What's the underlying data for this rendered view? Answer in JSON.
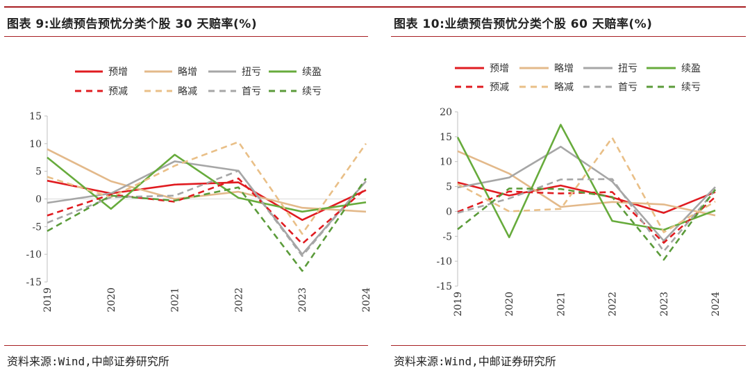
{
  "colors": {
    "accent": "#a71e22",
    "series": {
      "预增": "#e01b20",
      "略增": "#e3b98a",
      "扭亏": "#a6a6a6",
      "续盈": "#67ab3c",
      "预减": "#e01b20",
      "略减": "#e9bf87",
      "首亏": "#a6a6a6",
      "续亏": "#5b9b3a"
    }
  },
  "left": {
    "title": "图表 9:业绩预告预忧分类个股 30 天赔率(%)",
    "source": "资料来源:Wind,中邮证券研究所"
  },
  "right": {
    "title": "图表 10:业绩预告预忧分类个股 60 天赔率(%)",
    "source": "资料来源:Wind,中邮证券研究所"
  },
  "chart_data": [
    {
      "type": "line",
      "title": "图表 9:业绩预告预忧分类个股 30 天赔率(%)",
      "x": [
        "2019",
        "2020",
        "2021",
        "2022",
        "2023",
        "2024"
      ],
      "ylim": [
        -15,
        15
      ],
      "yticks": [
        -15,
        -10,
        -5,
        0,
        5,
        10,
        15
      ],
      "ylabel": "",
      "xlabel": "",
      "legend": "top",
      "series": [
        {
          "name": "预增",
          "dash": false,
          "values": [
            3.3,
            1.0,
            2.6,
            3.0,
            -3.8,
            1.6
          ]
        },
        {
          "name": "略增",
          "dash": false,
          "values": [
            9.0,
            3.2,
            0.0,
            1.3,
            -1.6,
            -2.3
          ]
        },
        {
          "name": "扭亏",
          "dash": false,
          "values": [
            -0.7,
            1.0,
            6.8,
            5.1,
            -10.0,
            3.2
          ]
        },
        {
          "name": "续盈",
          "dash": false,
          "values": [
            7.5,
            -1.8,
            8.0,
            0.2,
            -2.3,
            -0.6
          ]
        },
        {
          "name": "预减",
          "dash": true,
          "values": [
            -3.0,
            0.8,
            -0.5,
            3.7,
            -8.1,
            1.9
          ]
        },
        {
          "name": "略减",
          "dash": true,
          "values": [
            4.0,
            0.3,
            6.0,
            10.3,
            -6.3,
            10.0
          ]
        },
        {
          "name": "首亏",
          "dash": true,
          "values": [
            -4.3,
            0.3,
            0.6,
            5.1,
            -10.3,
            3.3
          ]
        },
        {
          "name": "续亏",
          "dash": true,
          "values": [
            -5.8,
            0.6,
            -0.3,
            2.1,
            -13.0,
            3.7
          ]
        }
      ]
    },
    {
      "type": "line",
      "title": "图表 10:业绩预告预忧分类个股 60 天赔率(%)",
      "x": [
        "2019",
        "2020",
        "2021",
        "2022",
        "2023",
        "2024"
      ],
      "ylim": [
        -15,
        20
      ],
      "yticks": [
        -15,
        -10,
        -5,
        0,
        5,
        10,
        15,
        20
      ],
      "ylabel": "",
      "xlabel": "",
      "legend": "top",
      "series": [
        {
          "name": "预增",
          "dash": false,
          "values": [
            5.8,
            3.2,
            5.2,
            2.8,
            -0.3,
            3.9
          ]
        },
        {
          "name": "略增",
          "dash": false,
          "values": [
            12.1,
            7.6,
            0.9,
            1.9,
            1.4,
            -0.8
          ]
        },
        {
          "name": "扭亏",
          "dash": false,
          "values": [
            4.8,
            6.8,
            13.0,
            6.0,
            -5.9,
            4.9
          ]
        },
        {
          "name": "续盈",
          "dash": false,
          "values": [
            14.9,
            -5.2,
            17.4,
            -1.9,
            -3.7,
            0.2
          ]
        },
        {
          "name": "预减",
          "dash": true,
          "values": [
            -0.1,
            4.0,
            3.6,
            3.9,
            -6.3,
            2.9
          ]
        },
        {
          "name": "略减",
          "dash": true,
          "values": [
            5.5,
            0.0,
            0.5,
            14.8,
            -4.2,
            2.0
          ]
        },
        {
          "name": "首亏",
          "dash": true,
          "values": [
            -0.3,
            2.6,
            6.4,
            6.5,
            -8.0,
            4.3
          ]
        },
        {
          "name": "续亏",
          "dash": true,
          "values": [
            -3.6,
            4.6,
            4.5,
            2.9,
            -9.7,
            4.4
          ]
        }
      ]
    }
  ]
}
